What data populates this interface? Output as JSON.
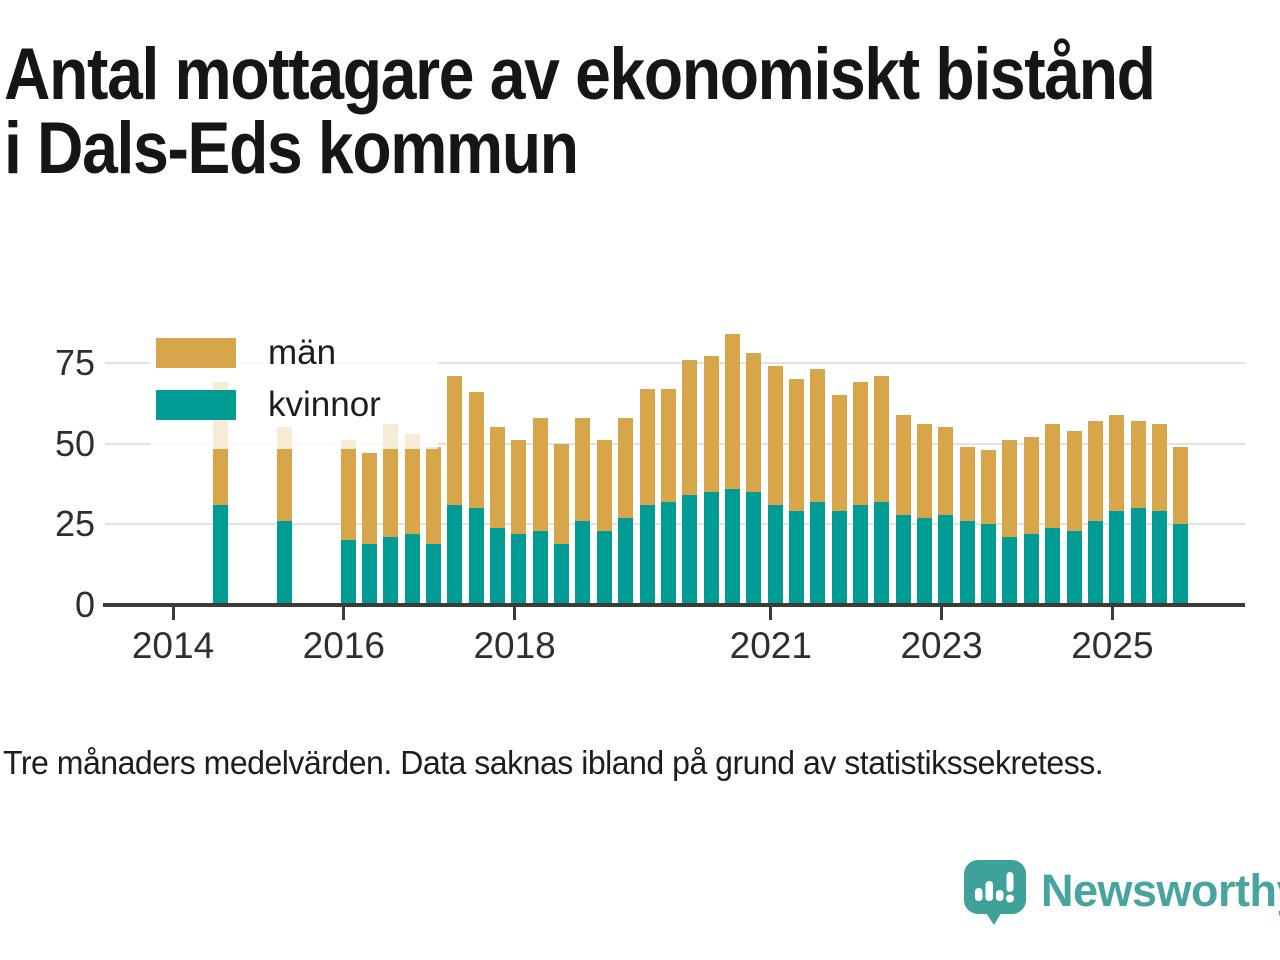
{
  "title": {
    "lines": [
      "Antal mottagare av ekonomiskt bistånd",
      "i Dals-Eds kommun"
    ]
  },
  "footnote": {
    "text": "Tre månaders medelvärden. Data saknas ibland på grund av statistikssekretess."
  },
  "legend": {
    "items": [
      {
        "label": "män",
        "color": "#d7a54a"
      },
      {
        "label": "kvinnor",
        "color": "#009c94"
      }
    ]
  },
  "brand": {
    "name": "Newsworthy",
    "color": "#48a49d"
  },
  "colors": {
    "man": "#d7a54a",
    "kvinnor": "#009c94",
    "gridline": "#e2e2e2",
    "axis": "#3b3b3b",
    "label_text": "#2f2f2f",
    "title_text": "#161616"
  },
  "chart_data": {
    "type": "bar",
    "stacked": true,
    "title": "Antal mottagare av ekonomiskt bistånd i Dals-Eds kommun",
    "xlabel": "",
    "ylabel": "",
    "x_unit": "quarter (tre månaders medelvärden)",
    "ylim": [
      0,
      85
    ],
    "yticks": [
      0,
      25,
      50,
      75
    ],
    "xticks": [
      2014,
      2016,
      2018,
      2021,
      2023,
      2025
    ],
    "grid": true,
    "legend_position": "top-left inside plot",
    "series_names": [
      "män",
      "kvinnor"
    ],
    "missing_periods": [
      "2014 Q4",
      "2015 Q1",
      "2015 Q3",
      "2015 Q4"
    ],
    "bars": [
      {
        "period": "2014 Q3",
        "kvinnor": 31,
        "man": 38
      },
      {
        "period": "2015 Q2",
        "kvinnor": 26,
        "man": 29
      },
      {
        "period": "2016 Q1",
        "kvinnor": 20,
        "man": 31
      },
      {
        "period": "2016 Q2",
        "kvinnor": 19,
        "man": 28
      },
      {
        "period": "2016 Q3",
        "kvinnor": 21,
        "man": 35
      },
      {
        "period": "2016 Q4",
        "kvinnor": 22,
        "man": 31
      },
      {
        "period": "2017 Q1",
        "kvinnor": 19,
        "man": 30
      },
      {
        "period": "2017 Q2",
        "kvinnor": 31,
        "man": 40
      },
      {
        "period": "2017 Q3",
        "kvinnor": 30,
        "man": 36
      },
      {
        "period": "2017 Q4",
        "kvinnor": 24,
        "man": 31
      },
      {
        "period": "2018 Q1",
        "kvinnor": 22,
        "man": 29
      },
      {
        "period": "2018 Q2",
        "kvinnor": 23,
        "man": 35
      },
      {
        "period": "2018 Q3",
        "kvinnor": 19,
        "man": 31
      },
      {
        "period": "2018 Q4",
        "kvinnor": 26,
        "man": 32
      },
      {
        "period": "2019 Q1",
        "kvinnor": 23,
        "man": 28
      },
      {
        "period": "2019 Q2",
        "kvinnor": 27,
        "man": 31
      },
      {
        "period": "2019 Q3",
        "kvinnor": 31,
        "man": 36
      },
      {
        "period": "2019 Q4",
        "kvinnor": 32,
        "man": 35
      },
      {
        "period": "2020 Q1",
        "kvinnor": 34,
        "man": 42
      },
      {
        "period": "2020 Q2",
        "kvinnor": 35,
        "man": 42
      },
      {
        "period": "2020 Q3",
        "kvinnor": 36,
        "man": 48
      },
      {
        "period": "2020 Q4",
        "kvinnor": 35,
        "man": 43
      },
      {
        "period": "2021 Q1",
        "kvinnor": 31,
        "man": 43
      },
      {
        "period": "2021 Q2",
        "kvinnor": 29,
        "man": 41
      },
      {
        "period": "2021 Q3",
        "kvinnor": 32,
        "man": 41
      },
      {
        "period": "2021 Q4",
        "kvinnor": 29,
        "man": 36
      },
      {
        "period": "2022 Q1",
        "kvinnor": 31,
        "man": 38
      },
      {
        "period": "2022 Q2",
        "kvinnor": 32,
        "man": 39
      },
      {
        "period": "2022 Q3",
        "kvinnor": 28,
        "man": 31
      },
      {
        "period": "2022 Q4",
        "kvinnor": 27,
        "man": 29
      },
      {
        "period": "2023 Q1",
        "kvinnor": 28,
        "man": 27
      },
      {
        "period": "2023 Q2",
        "kvinnor": 26,
        "man": 23
      },
      {
        "period": "2023 Q3",
        "kvinnor": 25,
        "man": 23
      },
      {
        "period": "2023 Q4",
        "kvinnor": 21,
        "man": 30
      },
      {
        "period": "2024 Q1",
        "kvinnor": 22,
        "man": 30
      },
      {
        "period": "2024 Q2",
        "kvinnor": 24,
        "man": 32
      },
      {
        "period": "2024 Q3",
        "kvinnor": 23,
        "man": 31
      },
      {
        "period": "2024 Q4",
        "kvinnor": 26,
        "man": 31
      },
      {
        "period": "2025 Q1",
        "kvinnor": 29,
        "man": 30
      },
      {
        "period": "2025 Q2",
        "kvinnor": 30,
        "man": 27
      },
      {
        "period": "2025 Q3",
        "kvinnor": 29,
        "man": 27
      },
      {
        "period": "2025 Q4",
        "kvinnor": 25,
        "man": 24
      }
    ]
  }
}
